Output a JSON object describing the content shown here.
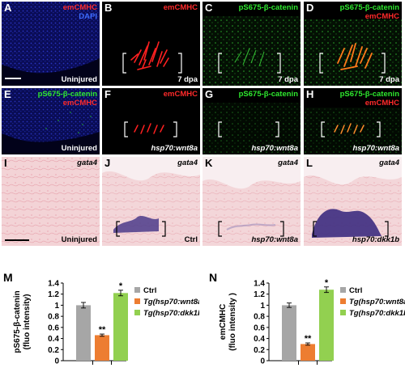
{
  "panels": [
    {
      "id": "A",
      "letter": "A",
      "top_label": [
        {
          "text": "emCMHC",
          "color": "red"
        },
        {
          "text": "DAPI",
          "color": "blue"
        }
      ],
      "bottom_label": "Uninjured",
      "bottom_italic": false,
      "label_color": "white"
    },
    {
      "id": "B",
      "letter": "B",
      "top_label": [
        {
          "text": "emCMHC",
          "color": "red"
        }
      ],
      "bottom_label": "7 dpa",
      "bottom_italic": false,
      "label_color": "white"
    },
    {
      "id": "C",
      "letter": "C",
      "top_label": [
        {
          "text": "pS675-β-catenin",
          "color": "green"
        }
      ],
      "bottom_label": "7 dpa",
      "bottom_italic": false,
      "label_color": "white"
    },
    {
      "id": "D",
      "letter": "D",
      "top_label": [
        {
          "text": "pS675-β-catenin",
          "color": "green"
        },
        {
          "text": "emCMHC",
          "color": "red"
        }
      ],
      "bottom_label": "7 dpa",
      "bottom_italic": false,
      "label_color": "white"
    },
    {
      "id": "E",
      "letter": "E",
      "top_label": [
        {
          "text": "pS675-β-catenin",
          "color": "green"
        },
        {
          "text": "emCMHC",
          "color": "red"
        }
      ],
      "bottom_label": "Uninjured",
      "bottom_italic": false,
      "label_color": "white"
    },
    {
      "id": "F",
      "letter": "F",
      "top_label": [
        {
          "text": "emCMHC",
          "color": "red"
        }
      ],
      "bottom_label": "hsp70:wnt8a",
      "bottom_italic": true,
      "label_color": "white"
    },
    {
      "id": "G",
      "letter": "G",
      "top_label": [
        {
          "text": "pS675-β-catenin",
          "color": "green"
        }
      ],
      "bottom_label": "hsp70:wnt8a",
      "bottom_italic": true,
      "label_color": "white"
    },
    {
      "id": "H",
      "letter": "H",
      "top_label": [
        {
          "text": "pS675-β-catenin",
          "color": "green"
        },
        {
          "text": "emCMHC",
          "color": "red"
        }
      ],
      "bottom_label": "hsp70:wnt8a",
      "bottom_italic": true,
      "label_color": "white"
    },
    {
      "id": "I",
      "letter": "I",
      "top_label": [
        {
          "text": "gata4",
          "color": "black"
        }
      ],
      "bottom_label": "Uninjured",
      "bottom_italic": false,
      "label_color": "black"
    },
    {
      "id": "J",
      "letter": "J",
      "top_label": [
        {
          "text": "gata4",
          "color": "black"
        }
      ],
      "bottom_label": "Ctrl",
      "bottom_italic": false,
      "label_color": "black"
    },
    {
      "id": "K",
      "letter": "K",
      "top_label": [
        {
          "text": "gata4",
          "color": "black"
        }
      ],
      "bottom_label": "hsp70:wnt8a",
      "bottom_italic": true,
      "label_color": "black"
    },
    {
      "id": "L",
      "letter": "L",
      "top_label": [
        {
          "text": "gata4",
          "color": "black"
        }
      ],
      "bottom_label": "hsp70:dkk1b",
      "bottom_italic": true,
      "label_color": "black"
    }
  ],
  "chart_data": [
    {
      "type": "bar",
      "panel_letter": "M",
      "ylabel_lines": [
        "pS675-β-catenin",
        "(fluo intensity)"
      ],
      "ylim": [
        0,
        1.4
      ],
      "yticks": [
        "0",
        "0.2",
        "0.4",
        "0.6",
        "0.8",
        "1",
        "1.2",
        "1.4"
      ],
      "tick_values": [
        0,
        0.2,
        0.4,
        0.6,
        0.8,
        1,
        1.2,
        1.4
      ],
      "series": [
        {
          "name": "Ctrl",
          "value": 1.0,
          "error": 0.05,
          "color": "#a6a6a6",
          "sig": ""
        },
        {
          "name": "Tg(hsp70:wnt8a)",
          "value": 0.46,
          "error": 0.02,
          "color": "#ed7d31",
          "sig": "**"
        },
        {
          "name": "Tg(hsp70:dkk1b)",
          "value": 1.22,
          "error": 0.05,
          "color": "#92d050",
          "sig": "*"
        }
      ],
      "legend_position": "right"
    },
    {
      "type": "bar",
      "panel_letter": "N",
      "ylabel_lines": [
        "emCMHC",
        "(fluo intensity )"
      ],
      "ylim": [
        0,
        1.4
      ],
      "yticks": [
        "0",
        "0.2",
        "0.4",
        "0.6",
        "0.8",
        "1",
        "1.2",
        "1.4"
      ],
      "tick_values": [
        0,
        0.2,
        0.4,
        0.6,
        0.8,
        1,
        1.2,
        1.4
      ],
      "series": [
        {
          "name": "Ctrl",
          "value": 1.0,
          "error": 0.04,
          "color": "#a6a6a6",
          "sig": ""
        },
        {
          "name": "Tg(hsp70:wnt8a)",
          "value": 0.3,
          "error": 0.02,
          "color": "#ed7d31",
          "sig": "**"
        },
        {
          "name": "Tg(hsp70:dkk1b)",
          "value": 1.28,
          "error": 0.05,
          "color": "#92d050",
          "sig": "*"
        }
      ],
      "legend_position": "right"
    }
  ]
}
